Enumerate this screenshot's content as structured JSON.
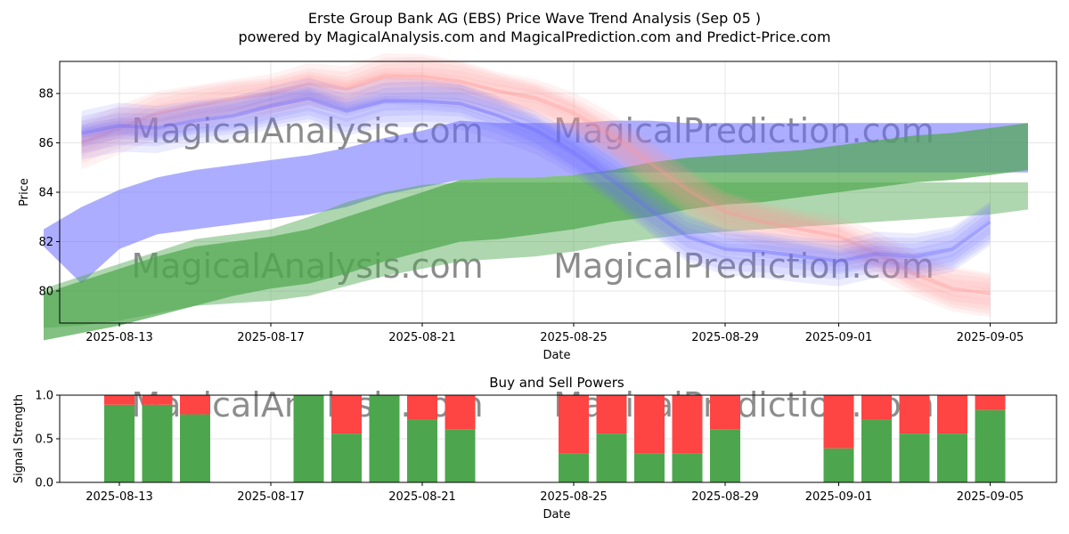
{
  "title": "Erste Group Bank AG (EBS) Price Wave Trend Analysis (Sep 05 )",
  "subtitle": "powered by MagicalAnalysis.com and MagicalPrediction.com and Predict-Price.com",
  "watermarks": [
    "MagicalAnalysis.com",
    "MagicalPrediction.com"
  ],
  "colors": {
    "red": "#ff9999",
    "blue": "#6a6aff",
    "green": "#4da64d",
    "buy": "#4da64d",
    "sell": "#ff4444",
    "axis": "#000000",
    "grid": "#e6e6e6"
  },
  "chart_data": [
    {
      "type": "area",
      "title": "",
      "xlabel": "Date",
      "ylabel": "Price",
      "xlim": [
        "2025-08-11",
        "2025-09-06"
      ],
      "ylim": [
        78.7,
        89.3
      ],
      "x_ticks": [
        "2025-08-13",
        "2025-08-17",
        "2025-08-21",
        "2025-08-25",
        "2025-08-29",
        "2025-09-01",
        "2025-09-05"
      ],
      "y_ticks": [
        80,
        82,
        84,
        86,
        88
      ],
      "grid": true,
      "series": [
        {
          "name": "red wave",
          "color": "#ff9999",
          "x": [
            "2025-08-12",
            "2025-08-13",
            "2025-08-14",
            "2025-08-15",
            "2025-08-16",
            "2025-08-17",
            "2025-08-18",
            "2025-08-19",
            "2025-08-20",
            "2025-08-21",
            "2025-08-22",
            "2025-08-23",
            "2025-08-24",
            "2025-08-25",
            "2025-08-26",
            "2025-08-27",
            "2025-08-28",
            "2025-08-29",
            "2025-08-30",
            "2025-08-31",
            "2025-09-01",
            "2025-09-02",
            "2025-09-03",
            "2025-09-04",
            "2025-09-05"
          ],
          "values": [
            86.0,
            86.6,
            87.2,
            87.5,
            87.8,
            88.0,
            88.4,
            88.2,
            88.7,
            88.7,
            88.5,
            88.1,
            87.8,
            87.2,
            86.3,
            85.2,
            84.1,
            83.2,
            82.8,
            82.5,
            82.2,
            81.5,
            80.7,
            80.1,
            79.9
          ]
        },
        {
          "name": "blue wave",
          "color": "#6a6aff",
          "x": [
            "2025-08-12",
            "2025-08-13",
            "2025-08-14",
            "2025-08-15",
            "2025-08-16",
            "2025-08-17",
            "2025-08-18",
            "2025-08-19",
            "2025-08-20",
            "2025-08-21",
            "2025-08-22",
            "2025-08-23",
            "2025-08-24",
            "2025-08-25",
            "2025-08-26",
            "2025-08-27",
            "2025-08-28",
            "2025-08-29",
            "2025-08-30",
            "2025-08-31",
            "2025-09-01",
            "2025-09-02",
            "2025-09-03",
            "2025-09-04",
            "2025-09-05"
          ],
          "values": [
            86.4,
            86.7,
            86.6,
            86.9,
            87.1,
            87.5,
            87.8,
            87.3,
            87.7,
            87.7,
            87.6,
            87.1,
            86.5,
            85.6,
            84.5,
            83.3,
            82.2,
            81.7,
            81.6,
            81.4,
            81.2,
            81.5,
            81.4,
            81.7,
            82.8
          ]
        },
        {
          "name": "blue trend band",
          "color": "#6a6aff",
          "x": [
            "2025-08-11",
            "2025-08-12",
            "2025-08-13",
            "2025-08-14",
            "2025-08-15",
            "2025-08-16",
            "2025-08-17",
            "2025-08-18",
            "2025-08-19",
            "2025-08-20",
            "2025-08-21",
            "2025-08-22",
            "2025-08-23",
            "2025-08-24",
            "2025-08-25",
            "2025-08-26",
            "2025-08-27",
            "2025-08-28",
            "2025-08-29",
            "2025-08-30",
            "2025-08-31",
            "2025-09-01",
            "2025-09-02",
            "2025-09-03",
            "2025-09-04",
            "2025-09-05",
            "2025-09-06"
          ],
          "upper": [
            82.5,
            83.4,
            84.1,
            84.6,
            84.9,
            85.1,
            85.3,
            85.5,
            85.8,
            86.2,
            86.5,
            86.9,
            86.8,
            86.8,
            86.8,
            86.9,
            86.9,
            86.8,
            86.8,
            86.8,
            86.8,
            86.8,
            86.8,
            86.8,
            86.8,
            86.8,
            86.8
          ],
          "lower": [
            81.8,
            80.3,
            81.7,
            82.3,
            82.5,
            82.7,
            82.9,
            83.1,
            83.4,
            83.9,
            84.2,
            84.5,
            84.6,
            84.6,
            84.7,
            84.8,
            84.8,
            84.8,
            84.8,
            84.8,
            84.8,
            84.8,
            84.8,
            84.8,
            84.8,
            84.8,
            84.8
          ]
        },
        {
          "name": "green trend band (dark)",
          "color": "#4da64d",
          "x": [
            "2025-08-11",
            "2025-08-12",
            "2025-08-13",
            "2025-08-14",
            "2025-08-15",
            "2025-08-16",
            "2025-08-17",
            "2025-08-18",
            "2025-08-19",
            "2025-08-20",
            "2025-08-21",
            "2025-08-22",
            "2025-08-23",
            "2025-08-24",
            "2025-08-25",
            "2025-08-26",
            "2025-08-27",
            "2025-08-28",
            "2025-08-29",
            "2025-08-30",
            "2025-08-31",
            "2025-09-01",
            "2025-09-02",
            "2025-09-03",
            "2025-09-04",
            "2025-09-05",
            "2025-09-06"
          ],
          "upper": [
            79.9,
            80.4,
            80.9,
            81.4,
            81.8,
            82.0,
            82.2,
            82.5,
            83.0,
            83.5,
            84.0,
            84.5,
            84.6,
            84.6,
            84.7,
            84.9,
            85.2,
            85.4,
            85.5,
            85.6,
            85.7,
            85.9,
            86.1,
            86.3,
            86.4,
            86.6,
            86.8
          ],
          "lower": [
            78.0,
            78.3,
            78.6,
            79.0,
            79.4,
            79.8,
            80.1,
            80.3,
            80.7,
            81.2,
            81.6,
            82.0,
            82.1,
            82.3,
            82.5,
            82.8,
            83.0,
            83.3,
            83.5,
            83.6,
            83.8,
            84.0,
            84.2,
            84.4,
            84.5,
            84.7,
            84.9
          ]
        },
        {
          "name": "green trend band (light)",
          "color": "#4da64d",
          "x": [
            "2025-08-11",
            "2025-08-12",
            "2025-08-13",
            "2025-08-14",
            "2025-08-15",
            "2025-08-16",
            "2025-08-17",
            "2025-08-18",
            "2025-08-19",
            "2025-08-20",
            "2025-08-21",
            "2025-08-22",
            "2025-08-23",
            "2025-08-24",
            "2025-08-25",
            "2025-08-26",
            "2025-08-27",
            "2025-08-28",
            "2025-08-29",
            "2025-08-30",
            "2025-08-31",
            "2025-09-01",
            "2025-09-02",
            "2025-09-03",
            "2025-09-04",
            "2025-09-05",
            "2025-09-06"
          ],
          "upper": [
            80.1,
            80.6,
            81.1,
            81.6,
            82.1,
            82.3,
            82.5,
            83.0,
            83.6,
            84.0,
            84.3,
            84.4,
            84.4,
            84.4,
            84.4,
            84.4,
            84.4,
            84.4,
            84.4,
            84.4,
            84.4,
            84.4,
            84.4,
            84.4,
            84.4,
            84.4,
            84.4
          ],
          "lower": [
            78.5,
            78.6,
            78.8,
            79.1,
            79.4,
            79.5,
            79.6,
            79.8,
            80.2,
            80.6,
            80.9,
            81.2,
            81.3,
            81.4,
            81.6,
            81.9,
            82.1,
            82.3,
            82.4,
            82.5,
            82.6,
            82.7,
            82.8,
            82.9,
            83.0,
            83.1,
            83.3
          ]
        }
      ]
    },
    {
      "type": "bar",
      "title": "Buy and Sell Powers",
      "xlabel": "Date",
      "ylabel": "Signal Strength",
      "ylim": [
        0.0,
        1.0
      ],
      "y_ticks": [
        "0.0",
        "0.5",
        "1.0"
      ],
      "x_ticks": [
        "2025-08-13",
        "2025-08-17",
        "2025-08-21",
        "2025-08-25",
        "2025-08-29",
        "2025-09-01",
        "2025-09-05"
      ],
      "grid": true,
      "categories": [
        "2025-08-13",
        "2025-08-14",
        "2025-08-15",
        "2025-08-18",
        "2025-08-19",
        "2025-08-20",
        "2025-08-21",
        "2025-08-22",
        "2025-08-25",
        "2025-08-26",
        "2025-08-27",
        "2025-08-28",
        "2025-08-29",
        "2025-09-01",
        "2025-09-02",
        "2025-09-03",
        "2025-09-04",
        "2025-09-05"
      ],
      "series": [
        {
          "name": "Buy",
          "color": "#4da64d",
          "values": [
            0.89,
            0.89,
            0.78,
            1.0,
            0.56,
            1.0,
            0.72,
            0.61,
            0.33,
            0.56,
            0.33,
            0.33,
            0.61,
            0.39,
            0.72,
            0.56,
            0.56,
            0.83
          ]
        },
        {
          "name": "Sell",
          "color": "#ff4444",
          "values": [
            0.11,
            0.11,
            0.22,
            0.0,
            0.44,
            0.0,
            0.28,
            0.39,
            0.67,
            0.44,
            0.67,
            0.67,
            0.39,
            0.61,
            0.28,
            0.44,
            0.44,
            0.17
          ]
        }
      ]
    }
  ]
}
